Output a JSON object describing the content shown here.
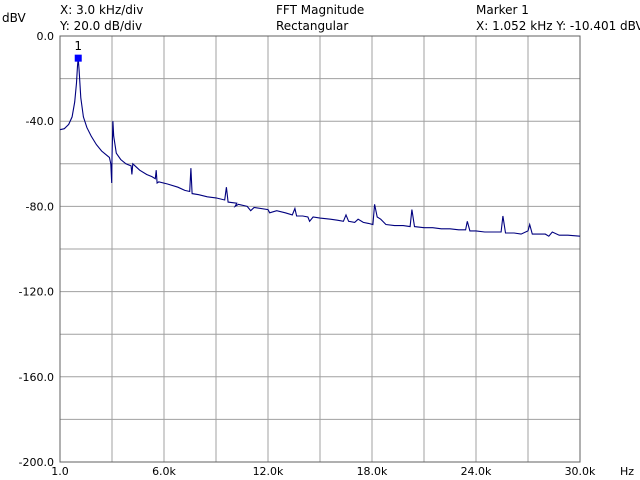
{
  "header": {
    "y_unit": "dBV",
    "x_scale": "X: 3.0 kHz/div",
    "y_scale": "Y: 20.0 dB/div",
    "title": "FFT Magnitude",
    "window": "Rectangular",
    "marker_title": "Marker 1",
    "marker_readout": "X: 1.052 kHz Y: -10.401 dBV"
  },
  "colors": {
    "trace": "#00007f",
    "marker": "#0000ff",
    "grid": "#a0a0a0",
    "frame": "#606060"
  },
  "chart_data": {
    "type": "line",
    "title": "FFT Magnitude",
    "xlabel": "Hz",
    "ylabel": "dBV",
    "xlim": [
      0,
      30000
    ],
    "ylim": [
      -200,
      0
    ],
    "grid": true,
    "x_ticks": [
      0,
      6000,
      12000,
      18000,
      24000,
      30000
    ],
    "x_tick_labels": [
      "1.0",
      "6.0k",
      "12.0k",
      "18.0k",
      "24.0k",
      "30.0k"
    ],
    "y_ticks": [
      0,
      -40,
      -80,
      -120,
      -160,
      -200
    ],
    "y_tick_labels": [
      "0.0",
      "-40.0",
      "-80.0",
      "-120.0",
      "-160.0",
      "-200.0"
    ],
    "marker": {
      "label": "1",
      "x": 1052,
      "y": -10.401
    },
    "series": [
      {
        "values": [
          [
            1,
            -44
          ],
          [
            250,
            -43.5
          ],
          [
            500,
            -41.5
          ],
          [
            700,
            -38
          ],
          [
            850,
            -31
          ],
          [
            950,
            -22
          ],
          [
            1010,
            -14
          ],
          [
            1052,
            -10.4
          ],
          [
            1100,
            -16
          ],
          [
            1200,
            -29
          ],
          [
            1350,
            -38
          ],
          [
            1550,
            -43
          ],
          [
            1800,
            -47
          ],
          [
            2100,
            -51
          ],
          [
            2400,
            -54
          ],
          [
            2700,
            -56
          ],
          [
            2850,
            -57
          ],
          [
            2930,
            -60
          ],
          [
            2980,
            -69
          ],
          [
            3000,
            -57
          ],
          [
            3050,
            -40
          ],
          [
            3100,
            -47
          ],
          [
            3250,
            -55
          ],
          [
            3500,
            -58
          ],
          [
            3800,
            -60
          ],
          [
            4100,
            -61
          ],
          [
            4150,
            -65
          ],
          [
            4200,
            -60
          ],
          [
            4600,
            -63
          ],
          [
            5000,
            -65
          ],
          [
            5300,
            -66
          ],
          [
            5500,
            -67
          ],
          [
            5550,
            -63
          ],
          [
            5600,
            -69
          ],
          [
            5700,
            -68.5
          ],
          [
            6200,
            -69.5
          ],
          [
            6800,
            -71
          ],
          [
            7200,
            -72.5
          ],
          [
            7480,
            -73
          ],
          [
            7550,
            -62
          ],
          [
            7620,
            -74
          ],
          [
            8000,
            -74.5
          ],
          [
            8500,
            -75.5
          ],
          [
            9000,
            -76
          ],
          [
            9500,
            -77
          ],
          [
            9600,
            -71
          ],
          [
            9700,
            -78
          ],
          [
            10200,
            -78.5
          ],
          [
            10100,
            -80
          ],
          [
            10300,
            -79
          ],
          [
            10800,
            -80
          ],
          [
            11000,
            -82
          ],
          [
            11200,
            -80.5
          ],
          [
            12000,
            -81.5
          ],
          [
            12100,
            -83
          ],
          [
            12500,
            -82
          ],
          [
            13000,
            -83
          ],
          [
            13400,
            -84
          ],
          [
            13550,
            -81
          ],
          [
            13650,
            -84.5
          ],
          [
            14000,
            -84.5
          ],
          [
            14300,
            -85
          ],
          [
            14400,
            -87
          ],
          [
            14600,
            -85
          ],
          [
            15000,
            -85.5
          ],
          [
            15600,
            -86
          ],
          [
            16000,
            -86.5
          ],
          [
            16350,
            -87
          ],
          [
            16500,
            -84
          ],
          [
            16650,
            -87
          ],
          [
            17000,
            -87.5
          ],
          [
            17200,
            -86
          ],
          [
            17500,
            -87.5
          ],
          [
            17800,
            -88
          ],
          [
            18050,
            -88.5
          ],
          [
            18150,
            -79
          ],
          [
            18300,
            -85
          ],
          [
            18500,
            -86
          ],
          [
            18800,
            -88.5
          ],
          [
            19300,
            -89
          ],
          [
            19800,
            -89
          ],
          [
            20200,
            -89.5
          ],
          [
            20300,
            -81.5
          ],
          [
            20450,
            -89.5
          ],
          [
            21000,
            -90
          ],
          [
            21500,
            -90
          ],
          [
            22000,
            -90.5
          ],
          [
            22500,
            -90.5
          ],
          [
            23000,
            -91
          ],
          [
            23400,
            -91
          ],
          [
            23500,
            -87
          ],
          [
            23650,
            -91.5
          ],
          [
            24000,
            -91.5
          ],
          [
            24500,
            -92
          ],
          [
            25000,
            -92
          ],
          [
            25450,
            -92
          ],
          [
            25550,
            -84.5
          ],
          [
            25700,
            -92.5
          ],
          [
            26200,
            -92.5
          ],
          [
            26600,
            -93
          ],
          [
            27000,
            -91.5
          ],
          [
            27100,
            -88.5
          ],
          [
            27250,
            -93
          ],
          [
            28000,
            -93
          ],
          [
            28200,
            -94
          ],
          [
            28400,
            -92
          ],
          [
            28800,
            -93.5
          ],
          [
            29300,
            -93.5
          ],
          [
            30000,
            -94
          ]
        ]
      }
    ]
  }
}
